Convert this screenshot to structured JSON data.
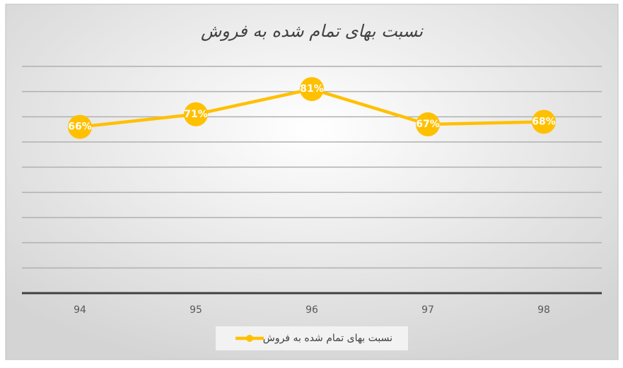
{
  "chart_data": {
    "type": "line",
    "title": "نسبت بهای تمام شده به فروش",
    "categories": [
      "94",
      "95",
      "96",
      "97",
      "98"
    ],
    "series": [
      {
        "name": "نسبت بهای تمام شده به فروش",
        "color": "#ffc000",
        "values": [
          66,
          71,
          81,
          67,
          68
        ],
        "value_labels": [
          "66%",
          "71%",
          "81%",
          "67%",
          "68%"
        ]
      }
    ],
    "ylim": [
      0,
      90
    ],
    "yticks": [
      0,
      10,
      20,
      30,
      40,
      50,
      60,
      70,
      80,
      90
    ],
    "grid": true,
    "legend": "bottom"
  }
}
